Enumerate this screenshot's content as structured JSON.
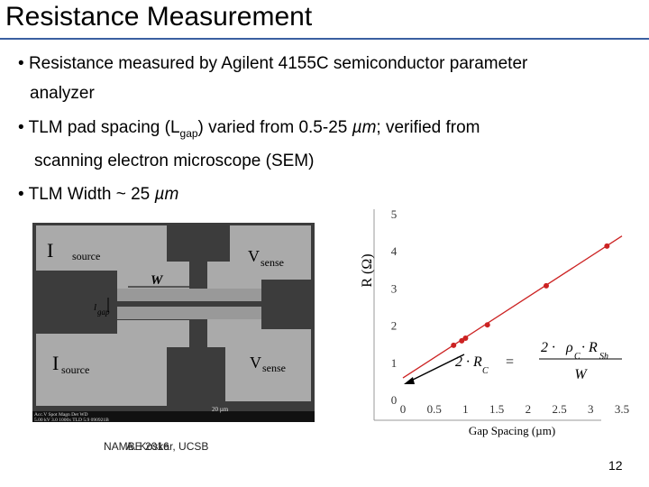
{
  "title": "Resistance Measurement",
  "bullets": [
    {
      "parts": [
        "Resistance measured by Agilent 4155C semiconductor parameter",
        "analyzer"
      ]
    },
    {
      "parts": [
        "TLM pad spacing (L",
        "gap",
        ") varied from 0.5-25 ",
        "µm",
        "; verified from",
        "scanning electron microscope (SEM)"
      ]
    },
    {
      "parts": [
        "TLM Width ~ 25 ",
        "µm"
      ]
    }
  ],
  "sem": {
    "labels": [
      "I",
      "source",
      "V",
      "sense",
      "W",
      "l",
      "gap",
      "V",
      "sense",
      "I",
      "source"
    ],
    "info": [
      "Acc.V  Spot Magn   Det  WD",
      "5.00 kV 3.0   1000x   TLD 5.9   090921B",
      "20 µm"
    ]
  },
  "chart": {
    "type": "scatter",
    "xlabel": "Gap Spacing (µm)",
    "ylabel": "R (Ω)",
    "x": [
      0.81,
      0.94,
      1.0,
      1.35,
      2.29,
      3.26
    ],
    "y": [
      1.46,
      1.58,
      1.65,
      2.01,
      3.06,
      4.13
    ],
    "color": "#cc2222",
    "fit": {
      "x": [
        0,
        3.5
      ],
      "y": [
        0.58,
        4.4
      ]
    },
    "xlim": [
      0,
      3.5
    ],
    "ylim": [
      0,
      5
    ],
    "xticks": [
      0,
      0.5,
      1,
      1.5,
      2,
      2.5,
      3,
      3.5
    ],
    "yticks": [
      0,
      1,
      2,
      3,
      4,
      5
    ],
    "formula": [
      "2 · R",
      "C",
      "=",
      "2 · ",
      "ρ",
      "C",
      "· R",
      "Sh",
      "W"
    ]
  },
  "footer": [
    "NAMBE 2016",
    "A. Koskar, UCSB"
  ],
  "page_number": "12"
}
